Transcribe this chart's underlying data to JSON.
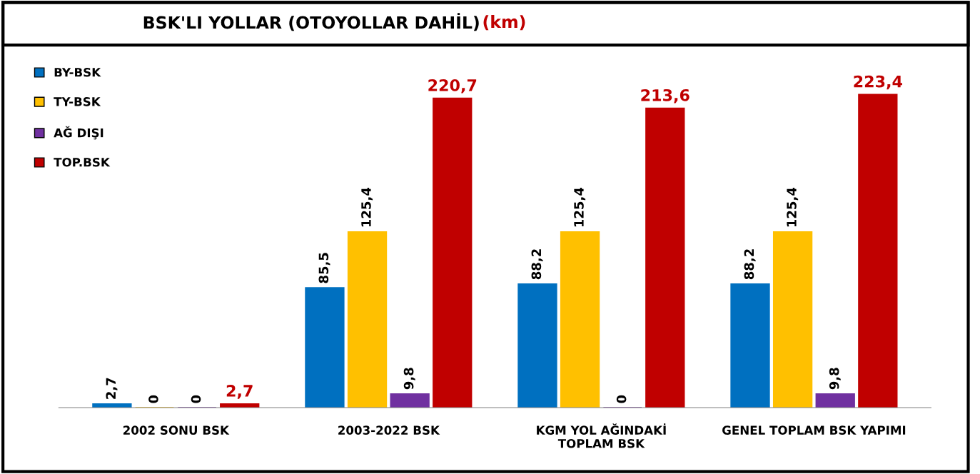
{
  "chart_data": {
    "type": "bar",
    "title": "BSK'LI YOLLAR (OTOYOLLAR DAHİL)",
    "subtitle": "(km)",
    "categories": [
      "2002 SONU BSK",
      "2003-2022 BSK",
      "KGM YOL AĞINDAKİ\nTOPLAM BSK",
      "GENEL TOPLAM BSK YAPIMI"
    ],
    "series": [
      {
        "name": "BY-BSK",
        "color": "#0070c0",
        "values": [
          2.7,
          85.5,
          88.2,
          88.2
        ],
        "value_labels": [
          "2,7",
          "85,5",
          "88,2",
          "88,2"
        ]
      },
      {
        "name": "TY-BSK",
        "color": "#ffc000",
        "values": [
          0,
          125.4,
          125.4,
          125.4
        ],
        "value_labels": [
          "0",
          "125,4",
          "125,4",
          "125,4"
        ]
      },
      {
        "name": "AĞ DIŞI",
        "color": "#7030a0",
        "values": [
          0,
          9.8,
          0,
          9.8
        ],
        "value_labels": [
          "0",
          "9,8",
          "0",
          "9,8"
        ]
      },
      {
        "name": "TOP.BSK",
        "color": "#c00000",
        "values": [
          2.7,
          220.7,
          213.6,
          223.4
        ],
        "value_labels": [
          "2,7",
          "220,7",
          "213,6",
          "223,4"
        ]
      }
    ],
    "legend": "top left",
    "grid": false
  }
}
